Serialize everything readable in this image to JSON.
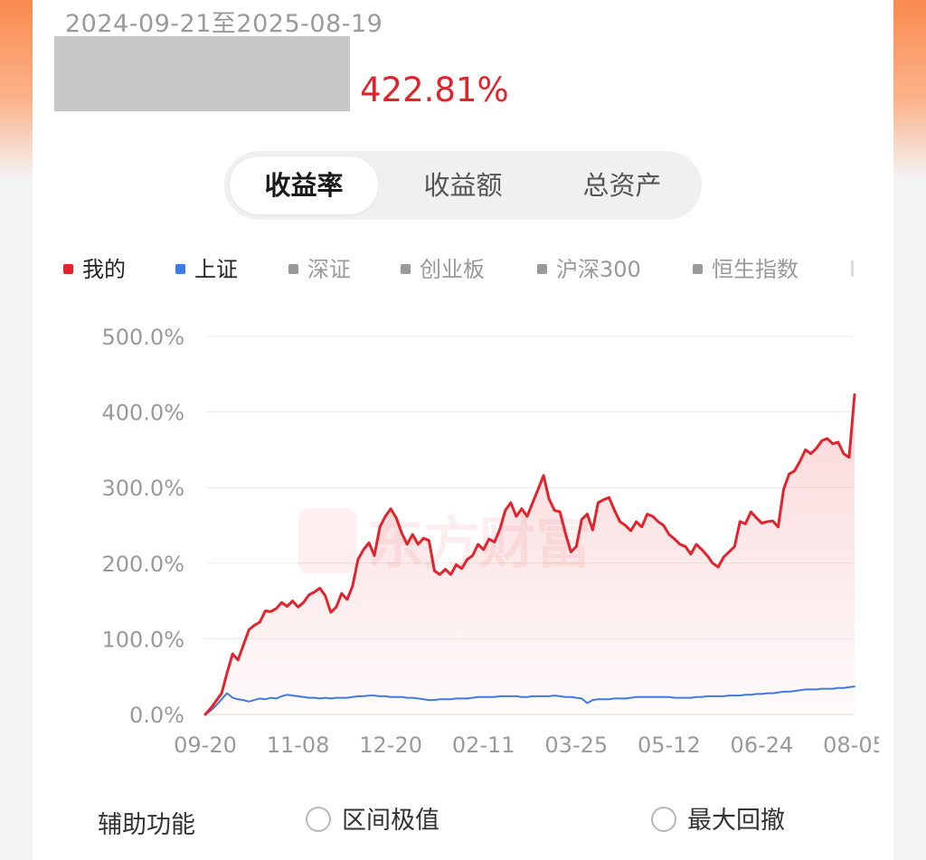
{
  "header": {
    "date_range": "2024-09-21至2025-08-19",
    "return_value": "422.81%"
  },
  "tabs": [
    {
      "label": "收益率",
      "active": true
    },
    {
      "label": "收益额",
      "active": false
    },
    {
      "label": "总资产",
      "active": false
    }
  ],
  "legend": [
    {
      "label": "我的",
      "color": "#e3232c",
      "on": true
    },
    {
      "label": "上证",
      "color": "#3b7de6",
      "on": true
    },
    {
      "label": "深证",
      "color": "#999999",
      "on": false
    },
    {
      "label": "创业板",
      "color": "#999999",
      "on": false
    },
    {
      "label": "沪深300",
      "color": "#999999",
      "on": false
    },
    {
      "label": "恒生指数",
      "color": "#999999",
      "on": false
    }
  ],
  "watermark": "东方财富",
  "footer": {
    "label": "辅助功能",
    "options": [
      "区间极值",
      "最大回撤"
    ]
  },
  "chart_data": {
    "type": "line",
    "ylim": [
      0,
      500
    ],
    "y_ticks": [
      "500.0%",
      "400.0%",
      "300.0%",
      "200.0%",
      "100.0%",
      "0.0%"
    ],
    "y_tick_values": [
      500,
      400,
      300,
      200,
      100,
      0
    ],
    "x_tick_labels": [
      "09-20",
      "11-08",
      "12-20",
      "02-11",
      "03-25",
      "05-12",
      "06-24",
      "08-05"
    ],
    "grid": true,
    "legend_placement": "top",
    "series": [
      {
        "name": "我的",
        "color": "#e3232c",
        "fill": true,
        "values": [
          0,
          8,
          18,
          28,
          55,
          80,
          72,
          92,
          112,
          118,
          122,
          137,
          136,
          140,
          148,
          143,
          150,
          142,
          148,
          158,
          162,
          167,
          157,
          135,
          142,
          160,
          152,
          170,
          205,
          218,
          227,
          210,
          248,
          262,
          272,
          260,
          240,
          225,
          238,
          225,
          233,
          230,
          190,
          185,
          192,
          185,
          198,
          193,
          205,
          210,
          225,
          218,
          232,
          228,
          245,
          270,
          280,
          262,
          272,
          262,
          280,
          298,
          316,
          285,
          270,
          268,
          240,
          215,
          222,
          258,
          265,
          244,
          280,
          284,
          287,
          270,
          255,
          250,
          243,
          255,
          248,
          265,
          262,
          255,
          250,
          238,
          232,
          225,
          222,
          212,
          225,
          218,
          210,
          200,
          195,
          208,
          215,
          222,
          255,
          252,
          268,
          260,
          253,
          255,
          256,
          248,
          298,
          318,
          322,
          335,
          350,
          345,
          352,
          362,
          365,
          358,
          360,
          345,
          340,
          422.81
        ]
      },
      {
        "name": "上证",
        "color": "#3b7de6",
        "fill": false,
        "values": [
          0,
          5,
          12,
          20,
          28,
          22,
          20,
          19,
          17,
          19,
          21,
          20,
          22,
          21,
          24,
          26,
          25,
          24,
          23,
          22,
          22,
          21,
          22,
          21,
          22,
          22,
          22,
          23,
          24,
          24,
          25,
          25,
          24,
          24,
          23,
          23,
          23,
          22,
          22,
          21,
          20,
          19,
          19,
          20,
          20,
          20,
          21,
          21,
          21,
          22,
          23,
          23,
          23,
          23,
          24,
          24,
          24,
          24,
          23,
          23,
          24,
          24,
          24,
          24,
          25,
          24,
          23,
          23,
          22,
          21,
          15,
          19,
          20,
          20,
          20,
          21,
          21,
          21,
          22,
          23,
          23,
          23,
          23,
          23,
          23,
          23,
          22,
          22,
          22,
          22,
          23,
          23,
          24,
          24,
          24,
          24,
          25,
          25,
          25,
          26,
          26,
          27,
          27,
          28,
          28,
          29,
          30,
          30,
          31,
          32,
          33,
          33,
          33,
          34,
          34,
          34,
          35,
          35,
          36,
          37
        ]
      }
    ]
  }
}
